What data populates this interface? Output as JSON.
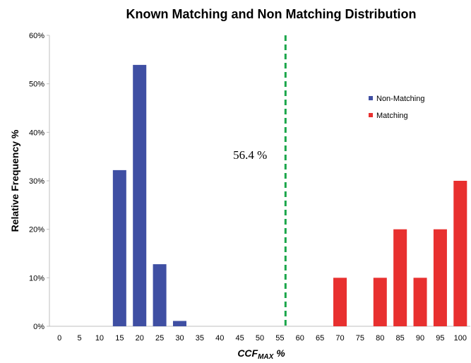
{
  "chart_data": {
    "type": "bar",
    "title": "Known Matching and Non Matching Distribution",
    "ylabel": "Relative Frequency %",
    "xlabel_main": "CCF",
    "xlabel_sub": "MAX",
    "xlabel_suffix": " %",
    "categories": [
      "0",
      "5",
      "10",
      "15",
      "20",
      "25",
      "30",
      "35",
      "40",
      "45",
      "50",
      "55",
      "60",
      "65",
      "70",
      "75",
      "80",
      "85",
      "90",
      "95",
      "100"
    ],
    "series": [
      {
        "name": "Non-Matching",
        "color": "#3f4fa3",
        "values": [
          0,
          0,
          0,
          32.2,
          53.9,
          12.8,
          1.1,
          0,
          0,
          0,
          0,
          0,
          0,
          0,
          0,
          0,
          0,
          0,
          0,
          0,
          0
        ]
      },
      {
        "name": "Matching",
        "color": "#e8302f",
        "values": [
          0,
          0,
          0,
          0,
          0,
          0,
          0,
          0,
          0,
          0,
          0,
          0,
          0,
          0,
          10,
          0,
          10,
          20,
          10,
          20,
          30
        ]
      }
    ],
    "ylim": [
      0,
      60
    ],
    "yticks": [
      "0%",
      "10%",
      "20%",
      "30%",
      "40%",
      "50%",
      "60%"
    ],
    "threshold": {
      "x": 56.4,
      "label": "56.4 %",
      "color": "#1aa64a"
    },
    "grid": false,
    "legend_position": "right"
  }
}
